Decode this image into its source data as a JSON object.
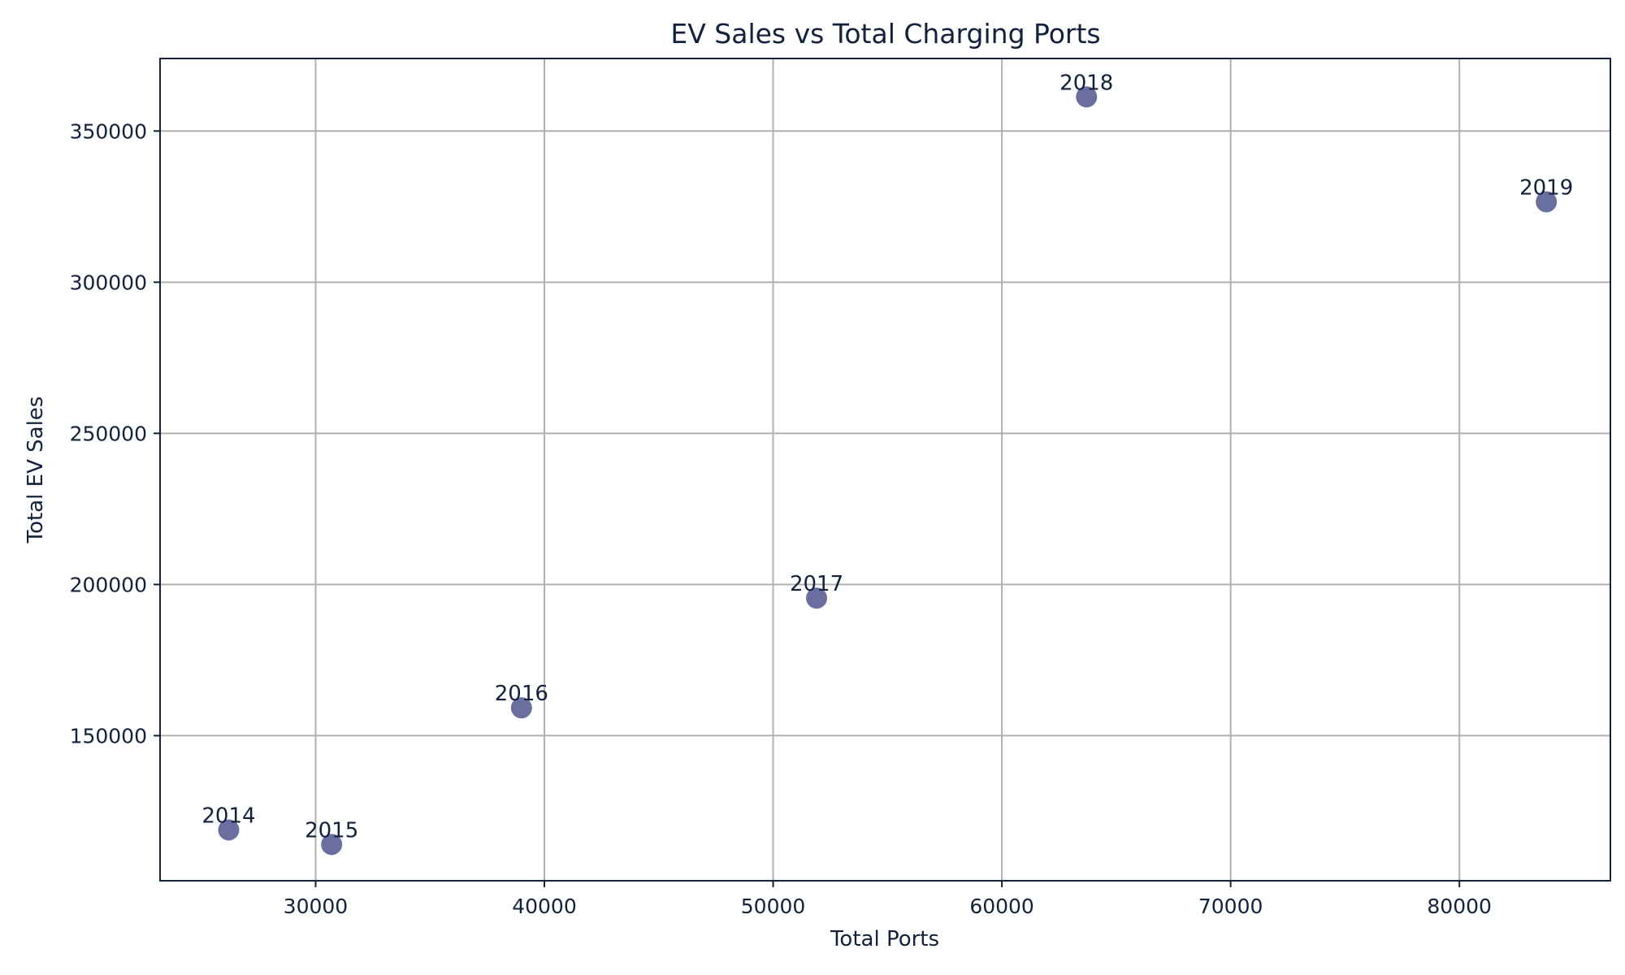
{
  "chart_data": {
    "type": "scatter",
    "title": "EV Sales vs Total Charging Ports",
    "xlabel": "Total Ports",
    "ylabel": "Total EV Sales",
    "xlim": [
      23200,
      86600
    ],
    "ylim": [
      102000,
      374000
    ],
    "xticks": [
      30000,
      40000,
      50000,
      60000,
      70000,
      80000
    ],
    "yticks": [
      150000,
      200000,
      250000,
      300000,
      350000
    ],
    "grid": true,
    "marker_color": "#5a5f96",
    "points": [
      {
        "label": "2014",
        "x": 26200,
        "y": 118800
      },
      {
        "label": "2015",
        "x": 30700,
        "y": 114000
      },
      {
        "label": "2016",
        "x": 39000,
        "y": 159200
      },
      {
        "label": "2017",
        "x": 51900,
        "y": 195500
      },
      {
        "label": "2018",
        "x": 63700,
        "y": 361300
      },
      {
        "label": "2019",
        "x": 83800,
        "y": 326600
      }
    ]
  }
}
